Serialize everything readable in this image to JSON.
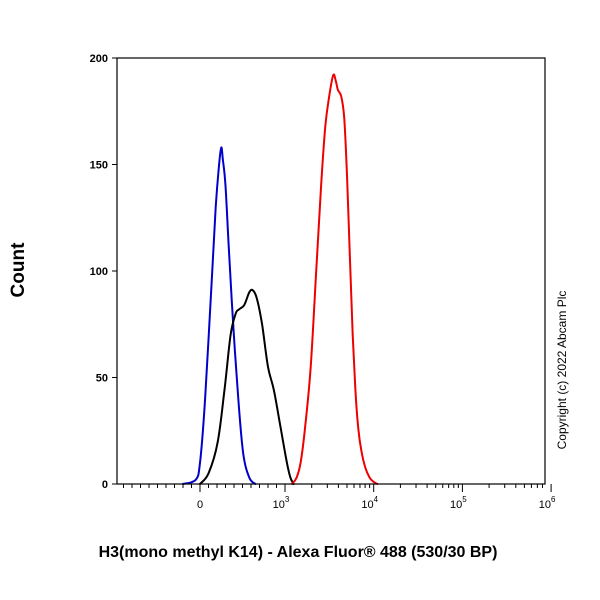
{
  "chart_data": {
    "type": "line",
    "title": "",
    "xlabel": "H3(mono methyl K14) - Alexa Fluor® 488 (530/30 BP)",
    "ylabel": "Count",
    "ylim": [
      0,
      200
    ],
    "yticks": [
      "0",
      "50",
      "100",
      "150",
      "200"
    ],
    "xscale": "biexponential",
    "xticks": [
      {
        "base": "0",
        "exp": ""
      },
      {
        "base": "10",
        "exp": "3"
      },
      {
        "base": "10",
        "exp": "4"
      },
      {
        "base": "10",
        "exp": "5"
      },
      {
        "base": "10",
        "exp": "6"
      }
    ],
    "grid": false,
    "legend": "none",
    "annotation": "Copyright (c) 2022 Abcam Plc",
    "series": [
      {
        "color": "#0000cc",
        "points": [
          [
            -200,
            0
          ],
          [
            -50,
            2
          ],
          [
            0,
            10
          ],
          [
            60,
            40
          ],
          [
            130,
            90
          ],
          [
            185,
            130
          ],
          [
            225,
            150
          ],
          [
            250,
            158
          ],
          [
            270,
            152
          ],
          [
            300,
            140
          ],
          [
            340,
            110
          ],
          [
            390,
            75
          ],
          [
            450,
            40
          ],
          [
            510,
            14
          ],
          [
            580,
            3
          ],
          [
            650,
            0
          ]
        ]
      },
      {
        "color": "#000000",
        "points": [
          [
            0,
            0
          ],
          [
            100,
            5
          ],
          [
            210,
            20
          ],
          [
            290,
            45
          ],
          [
            360,
            70
          ],
          [
            420,
            80
          ],
          [
            460,
            82
          ],
          [
            520,
            84
          ],
          [
            580,
            90
          ],
          [
            620,
            91
          ],
          [
            670,
            87
          ],
          [
            730,
            75
          ],
          [
            800,
            55
          ],
          [
            870,
            44
          ],
          [
            950,
            26
          ],
          [
            1050,
            10
          ],
          [
            1150,
            3
          ],
          [
            1250,
            0
          ]
        ]
      },
      {
        "color": "#ee0000",
        "points": [
          [
            1200,
            0
          ],
          [
            1350,
            3
          ],
          [
            1500,
            10
          ],
          [
            1700,
            28
          ],
          [
            1950,
            55
          ],
          [
            2250,
            100
          ],
          [
            2550,
            140
          ],
          [
            2850,
            168
          ],
          [
            3150,
            182
          ],
          [
            3500,
            192
          ],
          [
            3750,
            189
          ],
          [
            3950,
            185
          ],
          [
            4300,
            182
          ],
          [
            4650,
            172
          ],
          [
            5000,
            145
          ],
          [
            5400,
            105
          ],
          [
            5800,
            70
          ],
          [
            6200,
            45
          ],
          [
            6700,
            26
          ],
          [
            7300,
            15
          ],
          [
            8000,
            8
          ],
          [
            9000,
            3
          ],
          [
            10000,
            1
          ],
          [
            11000,
            0
          ]
        ]
      }
    ]
  }
}
